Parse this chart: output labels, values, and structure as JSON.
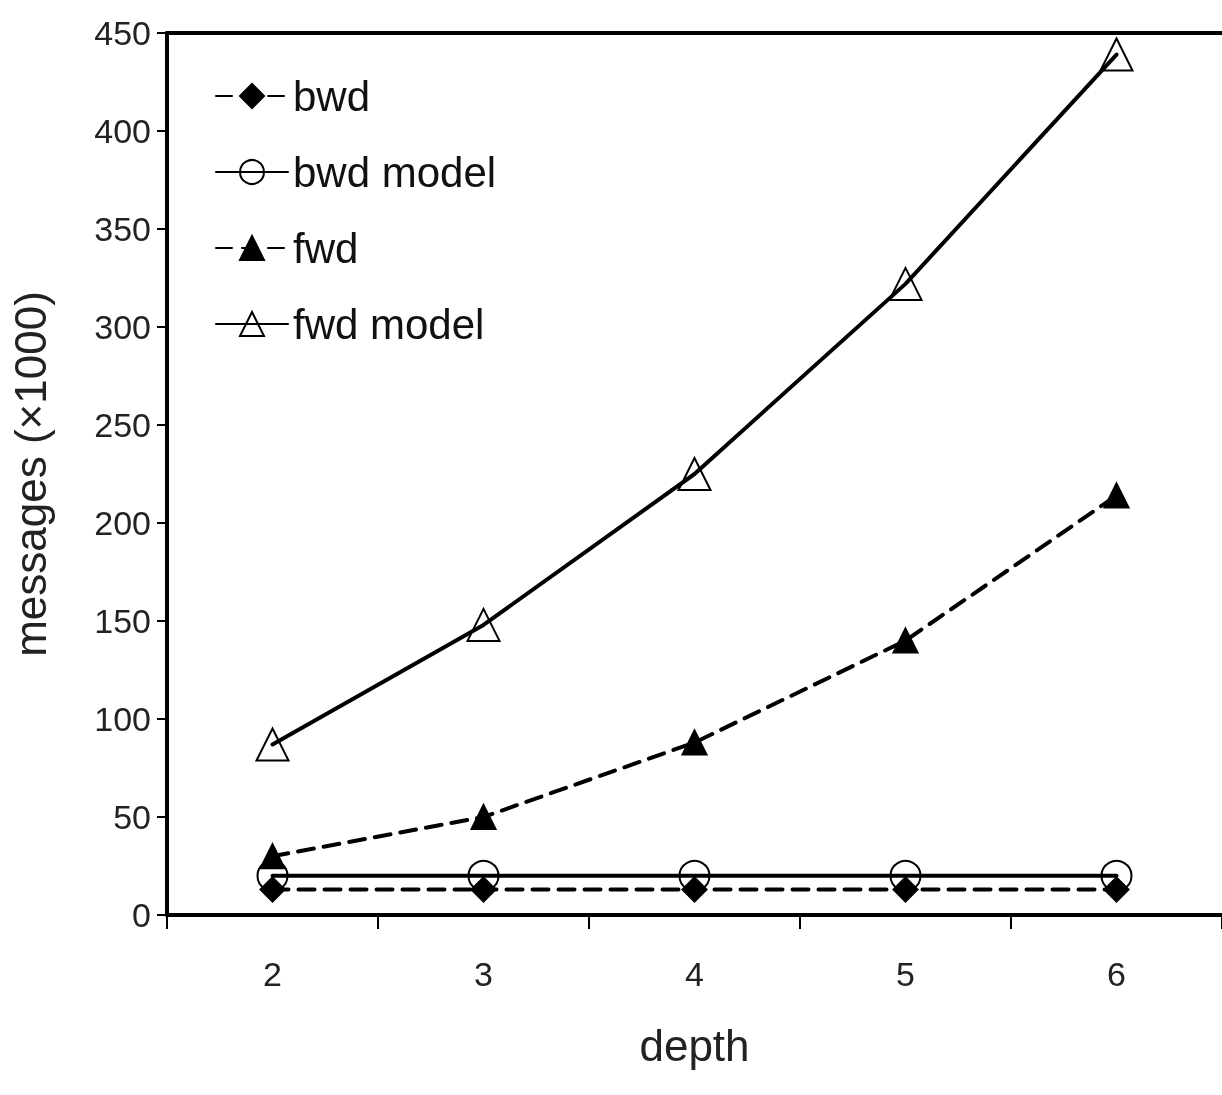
{
  "chart_data": {
    "type": "line",
    "xlabel": "depth",
    "ylabel": "messages (×1000)",
    "categories": [
      "2",
      "3",
      "4",
      "5",
      "6"
    ],
    "ylim": [
      0,
      450
    ],
    "yticks": [
      0,
      50,
      100,
      150,
      200,
      250,
      300,
      350,
      400,
      450
    ],
    "grid": false,
    "legend": "top left",
    "series": [
      {
        "name": "bwd",
        "color": "#000000",
        "marker": "diamond",
        "line_style": "dashed",
        "values": [
          13,
          13,
          13,
          13,
          13
        ]
      },
      {
        "name": "bwd model",
        "color": "#000000",
        "marker": "circle",
        "line_style": "solid",
        "values": [
          20,
          20,
          20,
          20,
          20
        ]
      },
      {
        "name": "fwd",
        "color": "#000000",
        "marker": "triangle",
        "line_style": "dashed",
        "values": [
          30,
          50,
          88,
          140,
          214
        ]
      },
      {
        "name": "fwd model",
        "color": "#000000",
        "marker": "triangle",
        "line_style": "solid",
        "values": [
          87,
          148,
          225,
          322,
          439
        ]
      }
    ]
  }
}
